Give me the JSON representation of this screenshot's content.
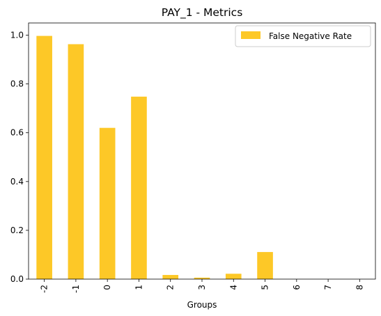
{
  "chart_data": {
    "type": "bar",
    "title": "PAY_1 - Metrics",
    "xlabel": "Groups",
    "ylabel": "",
    "categories": [
      "-2",
      "-1",
      "0",
      "1",
      "2",
      "3",
      "4",
      "5",
      "6",
      "7",
      "8"
    ],
    "series": [
      {
        "name": "False Negative Rate",
        "color": "#fdc827",
        "values": [
          0.997,
          0.963,
          0.62,
          0.748,
          0.017,
          0.006,
          0.022,
          0.111,
          0.0,
          0.0,
          0.0
        ]
      }
    ],
    "ylim": [
      0,
      1.05
    ],
    "yticks": [
      "0.0",
      "0.2",
      "0.4",
      "0.6",
      "0.8",
      "1.0"
    ],
    "ytick_values": [
      0.0,
      0.2,
      0.4,
      0.6,
      0.8,
      1.0
    ],
    "xtick_rotation": 90,
    "legend_position": "top-right",
    "grid": false
  }
}
